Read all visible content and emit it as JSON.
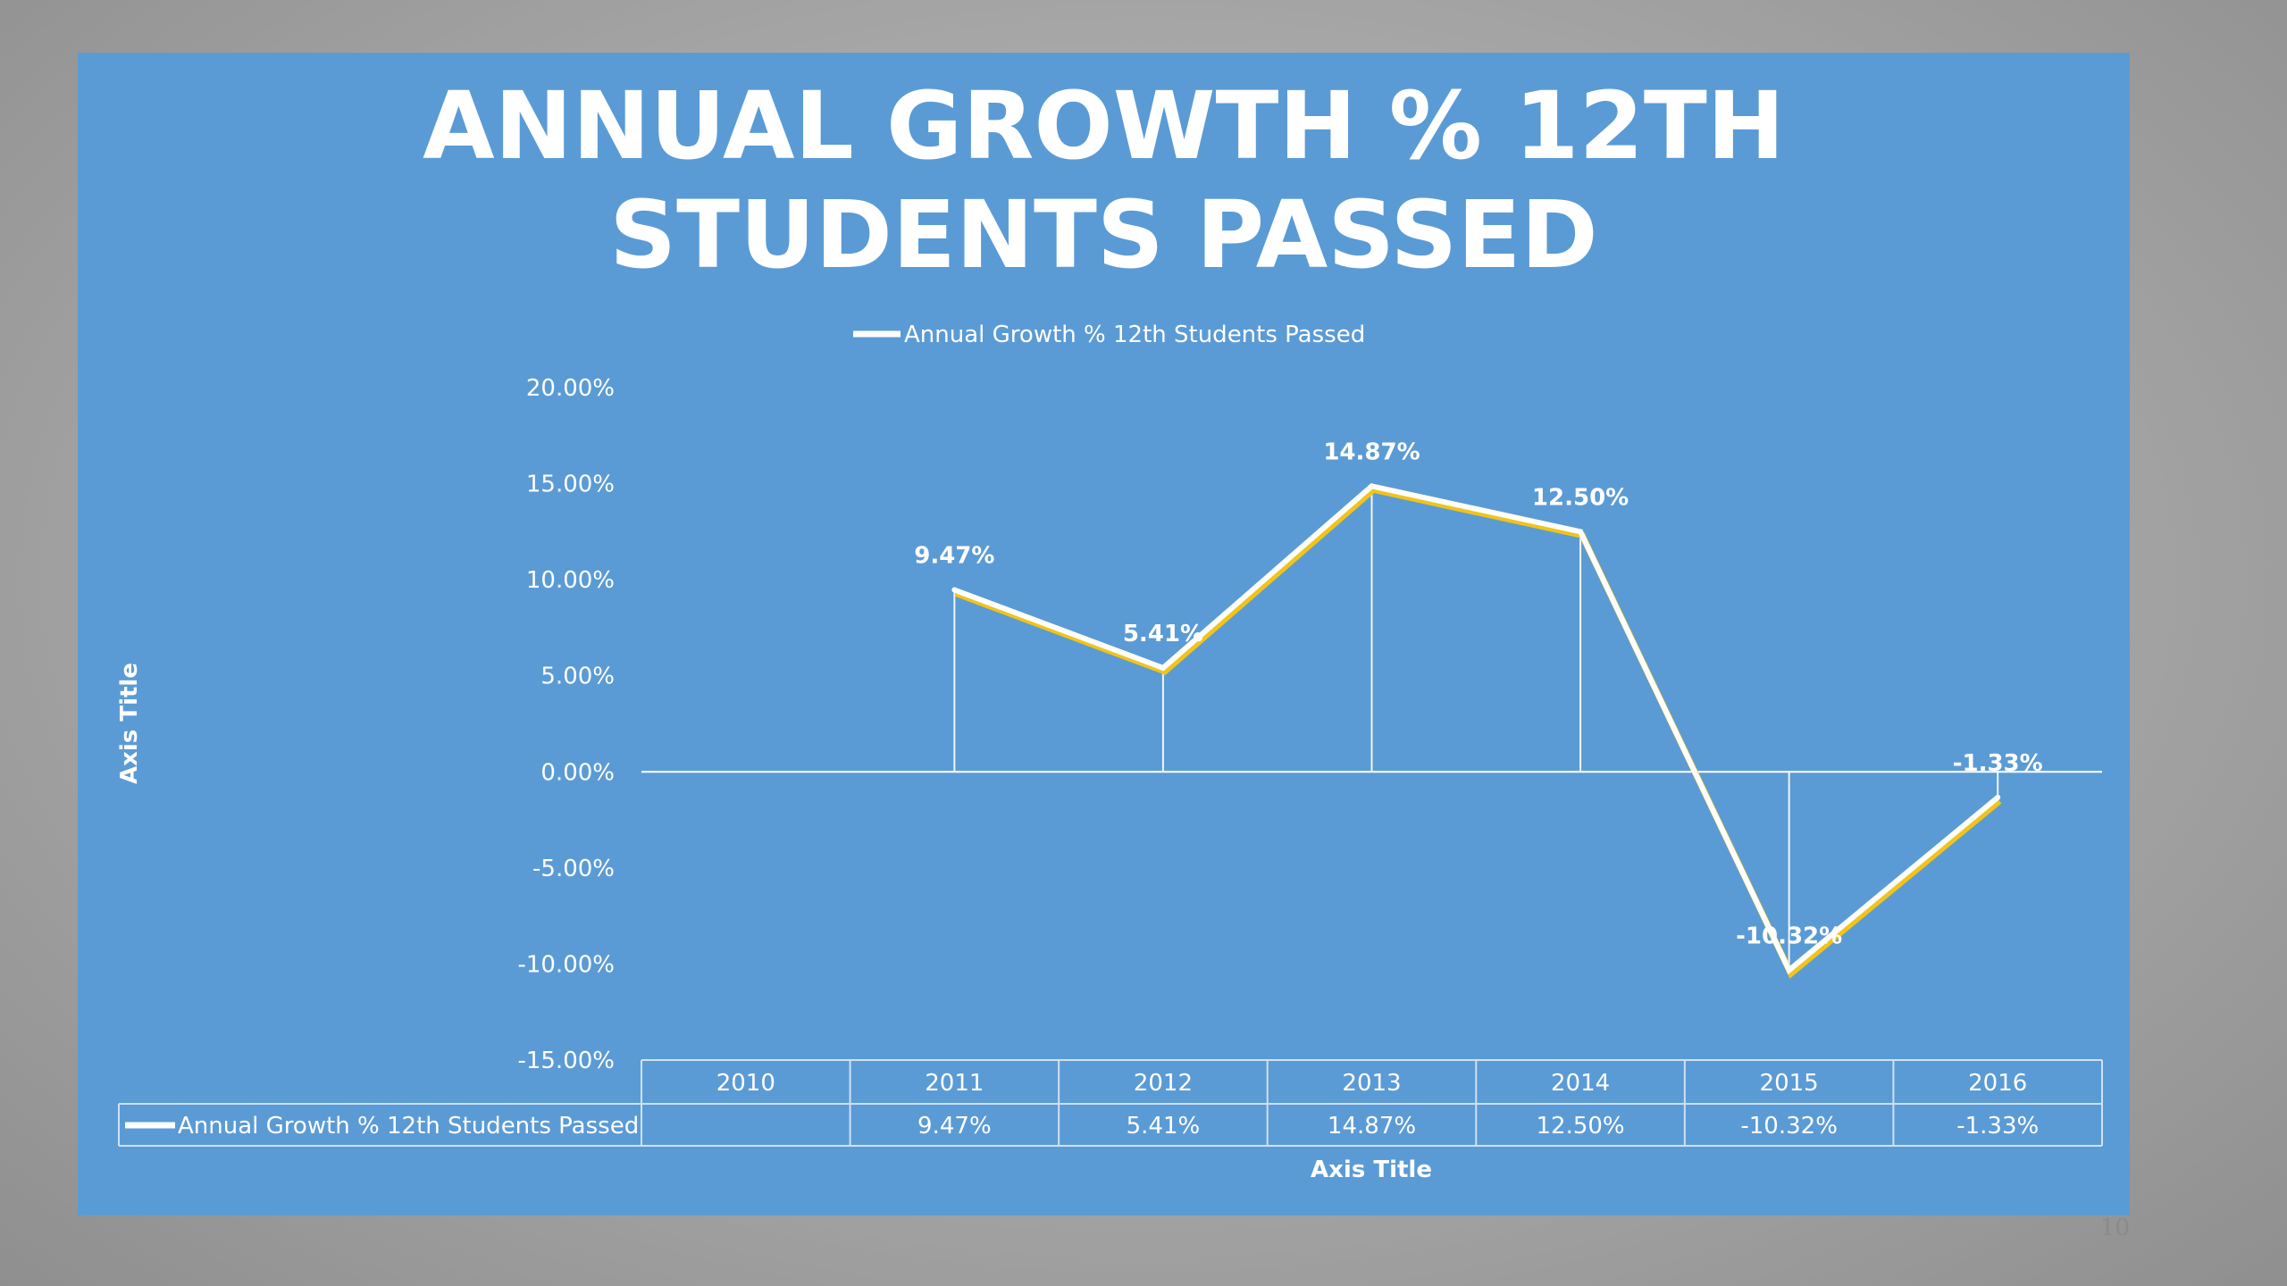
{
  "slide": {
    "page_number": "10"
  },
  "colors": {
    "slide_background": "#5b9bd5",
    "line": "#ffffff",
    "line_shadow": "#f0c419",
    "text": "#ffffff"
  },
  "chart_data": {
    "type": "line",
    "title": "ANNUAL GROWTH % 12TH STUDENTS PASSED",
    "title_lines": [
      "ANNUAL GROWTH % 12TH",
      "STUDENTS PASSED"
    ],
    "xlabel": "Axis Title",
    "ylabel": "Axis Title",
    "categories": [
      "2010",
      "2011",
      "2012",
      "2013",
      "2014",
      "2015",
      "2016"
    ],
    "series": [
      {
        "name": "Annual Growth % 12th Students Passed",
        "values": [
          null,
          9.47,
          5.41,
          14.87,
          12.5,
          -10.32,
          -1.33
        ],
        "labels": [
          "",
          "9.47%",
          "5.41%",
          "14.87%",
          "12.50%",
          "-10.32%",
          "-1.33%"
        ]
      }
    ],
    "ylim": [
      -15,
      20
    ],
    "yticks": [
      20,
      15,
      10,
      5,
      0,
      -5,
      -10,
      -15
    ],
    "ytick_labels": [
      "20.00%",
      "15.00%",
      "10.00%",
      "5.00%",
      "0.00%",
      "-5.00%",
      "-10.00%",
      "-15.00%"
    ],
    "legend": {
      "position": "top",
      "label": "Annual Growth % 12th Students Passed"
    },
    "data_table": true,
    "drop_lines": true,
    "grid": false
  }
}
